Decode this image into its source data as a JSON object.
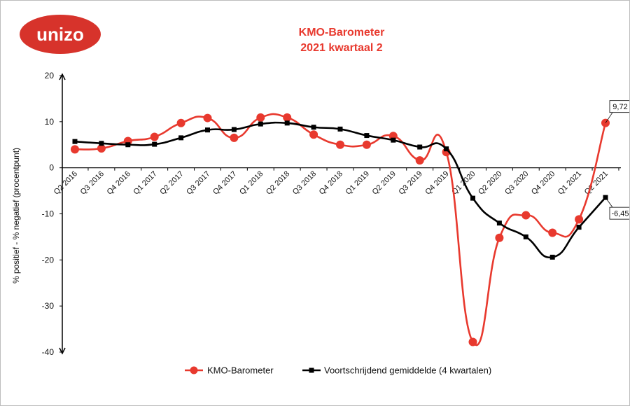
{
  "logo": {
    "text": "unizo",
    "color": "#d7332b"
  },
  "chart_data": {
    "type": "line",
    "title": "KMO-Barometer",
    "subtitle": "2021 kwartaal 2",
    "ylabel": "% positief - % negatief (procentpunt)",
    "xlabel": "",
    "ylim": [
      -40,
      20
    ],
    "yticks": [
      20,
      10,
      0,
      -10,
      -20,
      -30,
      -40
    ],
    "grid": false,
    "legend_position": "bottom",
    "categories": [
      "Q2 2016",
      "Q3 2016",
      "Q4 2016",
      "Q1 2017",
      "Q2 2017",
      "Q3 2017",
      "Q4 2017",
      "Q1 2018",
      "Q2 2018",
      "Q3 2018",
      "Q4 2018",
      "Q1 2019",
      "Q2 2019",
      "Q3 2019",
      "Q4 2019",
      "Q1 2020",
      "Q2 2020",
      "Q3 2020",
      "Q4 2020",
      "Q1 2021",
      "Q2 2021"
    ],
    "series": [
      {
        "name": "KMO-Barometer",
        "color": "#e8392e",
        "marker": "circle",
        "values": [
          4.0,
          4.2,
          5.8,
          6.7,
          9.7,
          10.8,
          6.5,
          10.9,
          10.9,
          7.2,
          5.0,
          5.0,
          6.9,
          1.6,
          3.4,
          -37.8,
          -15.2,
          -10.3,
          -14.1,
          -11.2,
          9.72
        ]
      },
      {
        "name": "Voortschrijdend gemiddelde (4 kwartalen)",
        "color": "#000000",
        "marker": "square",
        "values": [
          5.7,
          5.3,
          5.0,
          5.1,
          6.5,
          8.2,
          8.3,
          9.5,
          9.7,
          8.8,
          8.4,
          7.0,
          6.0,
          4.5,
          4.1,
          -6.6,
          -12.0,
          -15.0,
          -19.4,
          -12.9,
          -6.45
        ]
      }
    ],
    "annotations": [
      {
        "series": 0,
        "index": 20,
        "text": "9,72"
      },
      {
        "series": 1,
        "index": 20,
        "text": "-6,45"
      }
    ]
  }
}
